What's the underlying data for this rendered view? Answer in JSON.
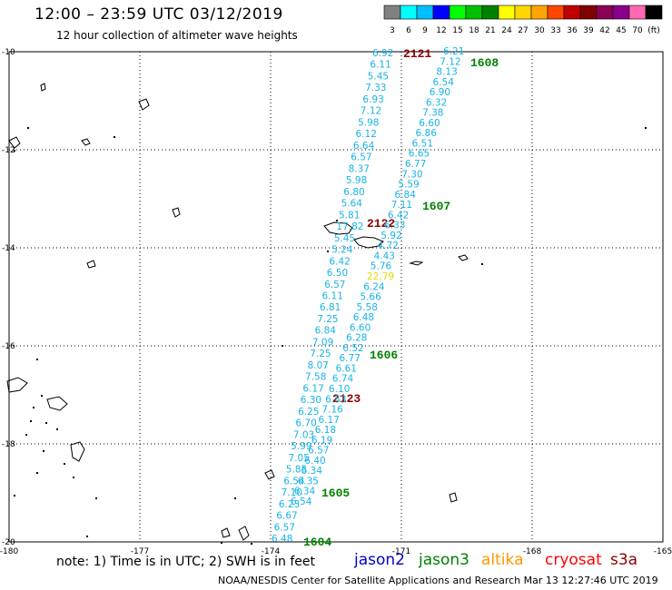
{
  "header": {
    "title": "12:00 – 23:59 UTC 03/12/2019",
    "subtitle": "12 hour collection of altimeter wave heights"
  },
  "color_scale": {
    "labels": [
      "3",
      "6",
      "9",
      "12",
      "15",
      "18",
      "21",
      "24",
      "27",
      "30",
      "33",
      "36",
      "39",
      "42",
      "45",
      "70",
      "(ft)"
    ],
    "colors": [
      "#808080",
      "#00ffff",
      "#00bfff",
      "#0000ff",
      "#00ff00",
      "#00c000",
      "#008000",
      "#ffff00",
      "#ffd700",
      "#ffa500",
      "#ff4500",
      "#c00000",
      "#800000",
      "#8b0057",
      "#8b008b",
      "#ff69b4",
      "#000000"
    ]
  },
  "axes": {
    "lat_labels": [
      "-10",
      "-12",
      "-14",
      "-16",
      "-18",
      "-20"
    ],
    "lon_labels": [
      "-180",
      "-177",
      "-174",
      "-171",
      "-168",
      "-165"
    ]
  },
  "passes": [
    {
      "name": "2121",
      "color": "#8b0000"
    },
    {
      "name": "1608",
      "color": "#008000"
    },
    {
      "name": "1607",
      "color": "#008000"
    },
    {
      "name": "2122",
      "color": "#8b0000"
    },
    {
      "name": "1606",
      "color": "#008000"
    },
    {
      "name": "2123",
      "color": "#8b0000"
    },
    {
      "name": "1605",
      "color": "#008000"
    },
    {
      "name": "1604",
      "color": "#008000"
    }
  ],
  "track_a": [
    "6.92",
    "6.11",
    "5.45",
    "7.33",
    "6.93",
    "7.12",
    "5.98",
    "6.12",
    "6.64",
    "6.57",
    "8.37",
    "5.98",
    "6.80",
    "5.64",
    "5.81",
    "17.82",
    "5.45",
    "5.24",
    "6.42",
    "6.50",
    "6.57",
    "6.11",
    "6.81",
    "7.25",
    "6.84",
    "7.09",
    "7.25",
    "8.07",
    "7.58",
    "6.17",
    "6.30",
    "6.25",
    "6.70",
    "7.03",
    "5.99",
    "7.05",
    "5.85",
    "6.54",
    "7.10",
    "6.23",
    "6.67",
    "6.57",
    "6.48"
  ],
  "track_b": [
    "6.21",
    "7.12",
    "8.13",
    "6.54",
    "6.90",
    "6.32",
    "7.38",
    "6.60",
    "6.86",
    "6.51",
    "6.65",
    "6.77",
    "7.30",
    "5.59",
    "6.84",
    "7.11",
    "6.42",
    "6.33",
    "5.92",
    "4.72",
    "4.43",
    "5.76",
    "22.79",
    "6.24",
    "5.66",
    "5.58",
    "6.48",
    "6.60",
    "6.28",
    "6.52",
    "6.77",
    "6.61",
    "6.74",
    "6.10",
    "6.53",
    "7.16",
    "6.17",
    "6.18",
    "6.19",
    "6.57",
    "6.40",
    "6.34",
    "6.35",
    "6.34",
    "6.54"
  ],
  "track_b_colors": {
    "22.79": "#e6d800"
  },
  "note": "note:  1) Time is in UTC;  2) SWH is in feet",
  "satellites": [
    {
      "name": "jason2",
      "color": "#0000cc"
    },
    {
      "name": "jason3",
      "color": "#008000"
    },
    {
      "name": "altika",
      "color": "#ff9900"
    },
    {
      "name": "cryosat",
      "color": "#ff0000"
    },
    {
      "name": "s3a",
      "color": "#8b0000"
    }
  ],
  "credit": "NOAA/NESDIS Center for Satellite Applications and Research    Mar 13 12:27:46 UTC 2019"
}
